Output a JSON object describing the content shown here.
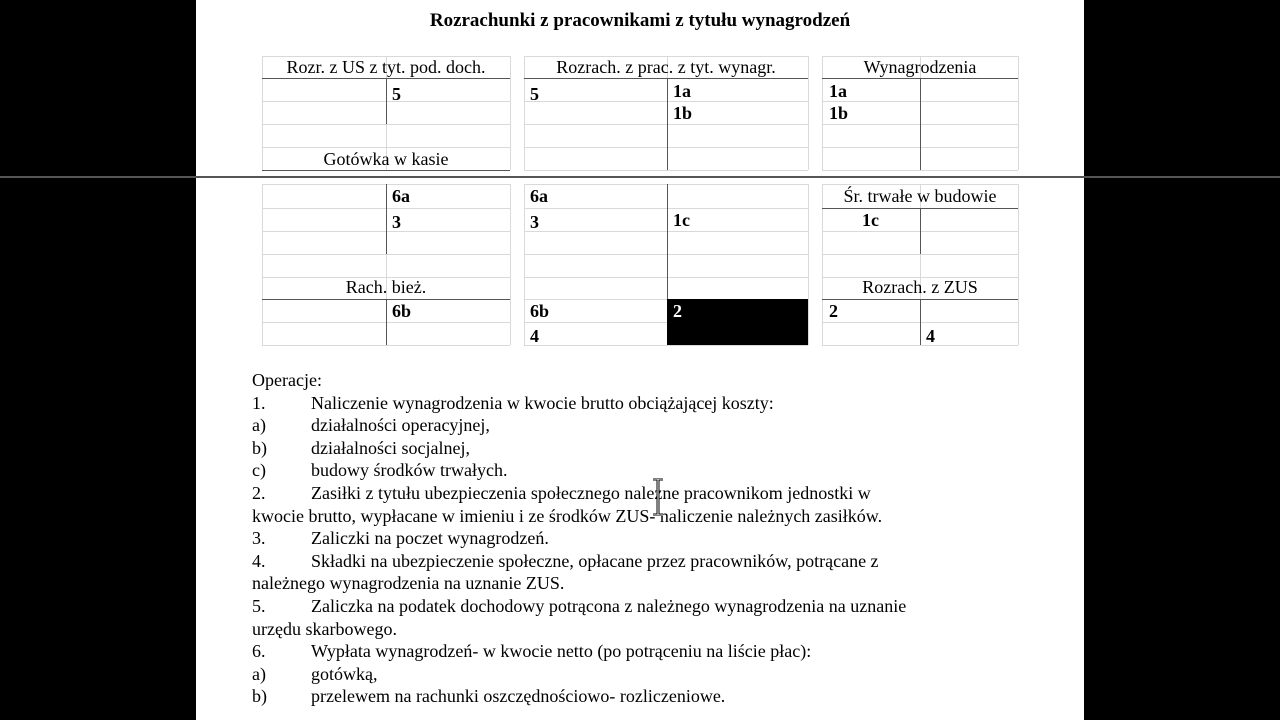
{
  "title": "Rozrachunki z pracownikami z tytułu wynagrodzeń",
  "accounts": {
    "us": "Rozr. z US z tyt. pod. doch.",
    "prac": "Rozrach. z prac. z tyt. wynagr.",
    "wyn": "Wynagrodzenia",
    "kasa": "Gotówka w kasie",
    "srt": "Śr. trwałe w budowie",
    "rb": "Rach. bież.",
    "zus": "Rozrach. z ZUS"
  },
  "entries": {
    "us_ma_1": "5",
    "prac_wn_1": "5",
    "prac_ma_1": "1a",
    "prac_ma_2": "1b",
    "wyn_wn_1": "1a",
    "wyn_wn_2": "1b",
    "kasa_ma_1": "6a",
    "kasa_ma_2": "3",
    "prac_wn_2": "6a",
    "prac_wn_3": "3",
    "prac_ma_3": "1c",
    "srt_wn_1": "1c",
    "rb_ma_1": "6b",
    "prac_wn_4": "6b",
    "prac_wn_5": "4",
    "prac_ma_4": "2",
    "zus_wn_1": "2",
    "zus_ma_1": "4"
  },
  "operations": [
    {
      "m": "Operacje:",
      "t": ""
    },
    {
      "m": "1.",
      "t": "Naliczenie wynagrodzenia w kwocie brutto obciążającej koszty:"
    },
    {
      "m": "a)",
      "t": "działalności operacyjnej,"
    },
    {
      "m": "b)",
      "t": "działalności socjalnej,"
    },
    {
      "m": "c)",
      "t": "budowy środków trwałych."
    },
    {
      "m": "2.",
      "t": "Zasiłki z tytułu ubezpieczenia społecznego należne pracownikom jednostki w"
    },
    {
      "m": "",
      "t": "kwocie brutto, wypłacane w imieniu i ze środków ZUS- naliczenie należnych zasiłków."
    },
    {
      "m": "3.",
      "t": "Zaliczki na poczet wynagrodzeń."
    },
    {
      "m": "4.",
      "t": "Składki na ubezpieczenie społeczne, opłacane przez pracowników, potrącane z"
    },
    {
      "m": "",
      "t": "należnego wynagrodzenia na uznanie ZUS."
    },
    {
      "m": "5.",
      "t": "Zaliczka na podatek dochodowy potrącona z należnego wynagrodzenia na uznanie"
    },
    {
      "m": "",
      "t": "urzędu skarbowego."
    },
    {
      "m": "6.",
      "t": "Wypłata wynagrodzeń- w kwocie netto (po potrąceniu na liście płac):"
    },
    {
      "m": "a)",
      "t": "gotówką,"
    },
    {
      "m": "b)",
      "t": "przelewem na rachunki oszczędnościowo- rozliczeniowe."
    }
  ]
}
